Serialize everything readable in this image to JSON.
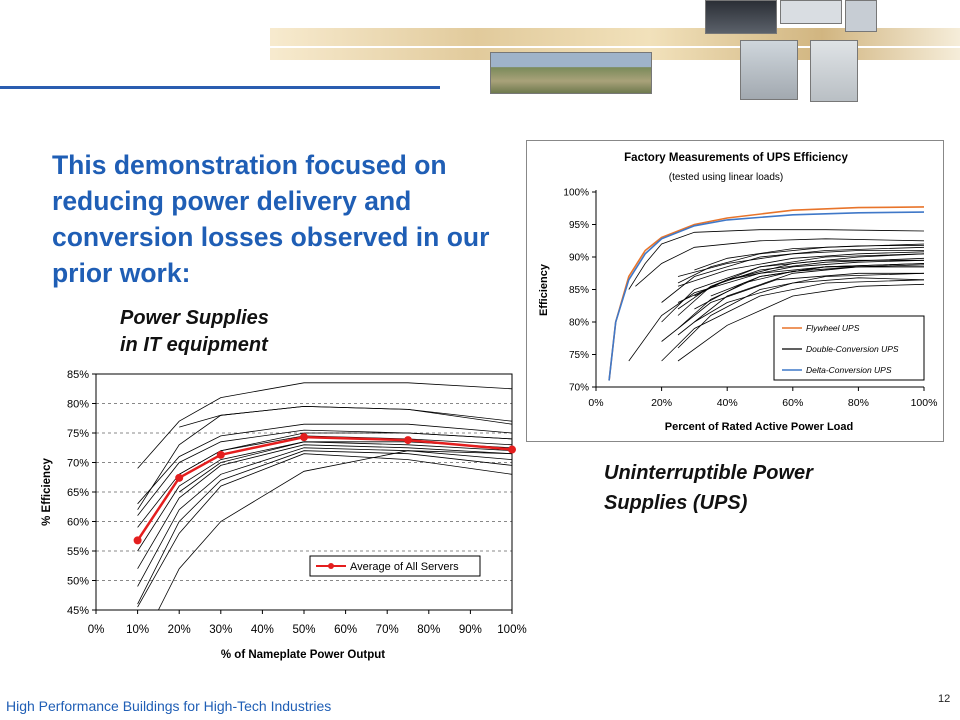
{
  "headline": "This demonstration focused on reducing power delivery and conversion losses observed in our prior work:",
  "labels": {
    "it_line1": "Power Supplies",
    "it_line2": "in IT equipment",
    "ups_line1": "Uninterruptible Power",
    "ups_line2": "Supplies (UPS)"
  },
  "footer": {
    "text": "High Performance Buildings for High-Tech Industries",
    "page": "12"
  },
  "colors": {
    "headline": "#1f5eb5",
    "rule": "#2a5db0",
    "average": "#e41e1e",
    "flywheel": "#e8742a",
    "delta": "#3f78c8"
  },
  "chart_data": [
    {
      "id": "power_supplies",
      "type": "line",
      "title": "",
      "xlabel": "% of Nameplate Power Output",
      "ylabel": "% Efficiency",
      "x_ticks": [
        "0%",
        "10%",
        "20%",
        "30%",
        "40%",
        "50%",
        "60%",
        "70%",
        "80%",
        "90%",
        "100%"
      ],
      "y_ticks": [
        "45%",
        "50%",
        "55%",
        "60%",
        "65%",
        "70%",
        "75%",
        "80%",
        "85%"
      ],
      "xlim": [
        0,
        100
      ],
      "ylim": [
        45,
        85
      ],
      "grid": "horizontal dashed",
      "legend_position": "bottom-right",
      "series": [
        {
          "name": "Average of All Servers",
          "highlight": true,
          "x": [
            10,
            20,
            30,
            50,
            75,
            100
          ],
          "y": [
            56.8,
            67.4,
            71.3,
            74.3,
            73.8,
            72.2
          ]
        },
        {
          "x": [
            10,
            20,
            30,
            50,
            75,
            100
          ],
          "y": [
            69,
            77,
            81,
            83.5,
            83.5,
            82.5
          ]
        },
        {
          "x": [
            10,
            20,
            30,
            50,
            75,
            100
          ],
          "y": [
            62,
            73,
            78,
            79.5,
            79,
            77
          ]
        },
        {
          "x": [
            20,
            30,
            50,
            75,
            100
          ],
          "y": [
            76,
            78,
            79.5,
            79,
            76.5
          ]
        },
        {
          "x": [
            10,
            20,
            30,
            50,
            75,
            100
          ],
          "y": [
            63,
            71,
            74.5,
            76.5,
            76.5,
            75
          ]
        },
        {
          "x": [
            10,
            20,
            30,
            50,
            75,
            100
          ],
          "y": [
            61,
            70,
            73.5,
            75.5,
            75,
            74
          ]
        },
        {
          "x": [
            10,
            20,
            30,
            50,
            75,
            100
          ],
          "y": [
            59,
            68,
            72,
            74.5,
            74,
            73
          ]
        },
        {
          "x": [
            10,
            20,
            30,
            50,
            75,
            100
          ],
          "y": [
            55,
            66,
            70.5,
            73.5,
            73,
            72
          ]
        },
        {
          "x": [
            10,
            20,
            30,
            50,
            75,
            100
          ],
          "y": [
            52,
            64,
            69.5,
            73,
            72.5,
            71.5
          ]
        },
        {
          "x": [
            10,
            20,
            30,
            50,
            75,
            100
          ],
          "y": [
            49,
            62,
            68,
            72.5,
            72,
            70.5
          ]
        },
        {
          "x": [
            10,
            20,
            30,
            50,
            75,
            100
          ],
          "y": [
            46,
            60,
            67,
            72,
            71.5,
            69.5
          ]
        },
        {
          "x": [
            10,
            20,
            30,
            50,
            75,
            100
          ],
          "y": [
            45.5,
            58,
            66,
            71.5,
            70.5,
            68
          ]
        },
        {
          "x": [
            15,
            20,
            30,
            50,
            75,
            100
          ],
          "y": [
            45,
            52,
            60,
            68.5,
            72,
            71.5
          ]
        },
        {
          "x": [
            20,
            30,
            50,
            75,
            100
          ],
          "y": [
            68,
            72,
            75,
            75,
            74
          ]
        },
        {
          "x": [
            20,
            30,
            50,
            75,
            100
          ],
          "y": [
            65,
            70,
            73.5,
            73.5,
            72.5
          ]
        }
      ]
    },
    {
      "id": "ups",
      "type": "line",
      "title": "Factory Measurements of UPS Efficiency",
      "subtitle": "(tested using linear loads)",
      "xlabel": "Percent of Rated Active Power Load",
      "ylabel": "Efficiency",
      "x_ticks": [
        "0%",
        "20%",
        "40%",
        "60%",
        "80%",
        "100%"
      ],
      "y_ticks": [
        "70%",
        "75%",
        "80%",
        "85%",
        "90%",
        "95%",
        "100%"
      ],
      "xlim": [
        0,
        100
      ],
      "ylim": [
        70,
        100
      ],
      "legend_position": "bottom-right",
      "series": [
        {
          "name": "Flywheel UPS",
          "style": "flywheel",
          "x": [
            4,
            6,
            10,
            15,
            20,
            30,
            40,
            60,
            80,
            100
          ],
          "y": [
            71,
            80,
            87,
            91,
            93,
            95,
            96,
            97.2,
            97.6,
            97.7
          ]
        },
        {
          "name": "Delta-Conversion UPS",
          "style": "delta",
          "x": [
            4,
            6,
            10,
            15,
            20,
            30,
            40,
            60,
            80,
            100
          ],
          "y": [
            71,
            80,
            86.5,
            90.5,
            92.8,
            94.8,
            95.7,
            96.5,
            96.8,
            96.9
          ]
        },
        {
          "name": "Double-Conversion UPS",
          "style": "double",
          "x": [
            10,
            15,
            20,
            30,
            50,
            70,
            100
          ],
          "y": [
            85,
            89,
            92,
            93.8,
            94.2,
            94.2,
            94
          ]
        },
        {
          "style": "double",
          "x": [
            12,
            20,
            30,
            50,
            70,
            100
          ],
          "y": [
            85.5,
            89,
            91.5,
            92.5,
            92.8,
            92.5
          ]
        },
        {
          "style": "double",
          "x": [
            20,
            30,
            50,
            70,
            100
          ],
          "y": [
            80,
            85,
            88.5,
            89.5,
            89.5
          ]
        },
        {
          "style": "double",
          "x": [
            25,
            35,
            50,
            70,
            100
          ],
          "y": [
            81,
            85.5,
            88.5,
            90,
            90.5
          ]
        },
        {
          "style": "double",
          "x": [
            25,
            35,
            50,
            70,
            100
          ],
          "y": [
            79,
            83.5,
            87,
            88.5,
            89
          ]
        },
        {
          "style": "double",
          "x": [
            20,
            30,
            50,
            70,
            100
          ],
          "y": [
            83,
            87,
            90,
            91,
            91.5
          ]
        },
        {
          "style": "double",
          "x": [
            25,
            35,
            50,
            70,
            100
          ],
          "y": [
            86,
            88.5,
            90.5,
            91.5,
            92
          ]
        },
        {
          "style": "double",
          "x": [
            30,
            40,
            60,
            80,
            100
          ],
          "y": [
            84,
            86.5,
            88.5,
            89.2,
            89.5
          ]
        },
        {
          "style": "double",
          "x": [
            25,
            35,
            50,
            70,
            100
          ],
          "y": [
            76,
            81,
            85,
            87,
            87.5
          ]
        },
        {
          "style": "double",
          "x": [
            20,
            30,
            50,
            70,
            100
          ],
          "y": [
            74,
            79,
            84,
            86,
            86.5
          ]
        },
        {
          "style": "double",
          "x": [
            10,
            20,
            30,
            50,
            70,
            100
          ],
          "y": [
            74,
            81,
            84.5,
            87.5,
            88.5,
            88.5
          ]
        },
        {
          "style": "double",
          "x": [
            25,
            35,
            50,
            70,
            100
          ],
          "y": [
            82,
            85.5,
            88,
            89.2,
            89.8
          ]
        },
        {
          "style": "double",
          "x": [
            25,
            40,
            60,
            80,
            100
          ],
          "y": [
            78,
            84,
            87.5,
            88.5,
            88.5
          ]
        },
        {
          "style": "double",
          "x": [
            30,
            40,
            60,
            80,
            100
          ],
          "y": [
            80,
            83,
            86,
            86.8,
            86.5
          ]
        },
        {
          "style": "double",
          "x": [
            25,
            40,
            60,
            80,
            100
          ],
          "y": [
            74,
            79.5,
            84,
            85.5,
            85.8
          ]
        },
        {
          "style": "double",
          "x": [
            25,
            40,
            60,
            80,
            100
          ],
          "y": [
            87,
            89,
            90.5,
            91,
            91
          ]
        },
        {
          "style": "double",
          "x": [
            30,
            40,
            60,
            80,
            100
          ],
          "y": [
            88,
            89.8,
            91.3,
            91.7,
            91.8
          ]
        },
        {
          "style": "double",
          "x": [
            25,
            40,
            60,
            80,
            100
          ],
          "y": [
            83,
            86.5,
            89,
            90,
            90.5
          ]
        },
        {
          "style": "double",
          "x": [
            20,
            35,
            55,
            80,
            100
          ],
          "y": [
            77,
            83,
            86.5,
            87.5,
            87.5
          ]
        },
        {
          "style": "double",
          "x": [
            30,
            45,
            60,
            80,
            100
          ],
          "y": [
            82,
            86,
            87.8,
            88.5,
            88.8
          ]
        },
        {
          "style": "double",
          "x": [
            25,
            40,
            60,
            80,
            100
          ],
          "y": [
            85.5,
            88,
            89.8,
            90.5,
            90.8
          ]
        },
        {
          "style": "double",
          "x": [
            35,
            50,
            70,
            100
          ],
          "y": [
            84,
            87,
            88.5,
            89
          ]
        }
      ]
    }
  ]
}
